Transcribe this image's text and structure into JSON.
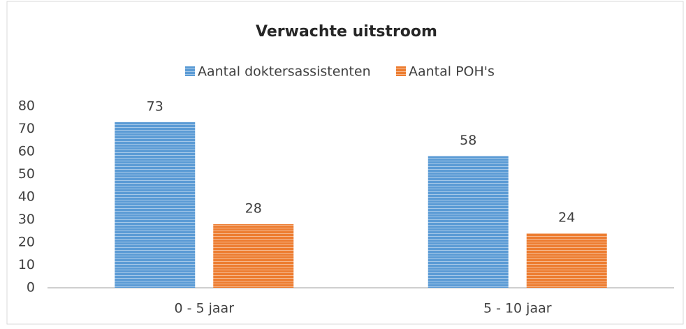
{
  "chart_data": {
    "type": "bar",
    "title": "Verwachte uitstroom",
    "categories": [
      "0 - 5 jaar",
      "5 - 10 jaar"
    ],
    "series": [
      {
        "name": "Aantal doktersassistenten",
        "color": "#5b9bd5",
        "values": [
          73,
          58
        ]
      },
      {
        "name": "Aantal POH's",
        "color": "#ed7d31",
        "values": [
          28,
          24
        ]
      }
    ],
    "ylim": [
      0,
      80
    ],
    "yticks": [
      0,
      10,
      20,
      30,
      40,
      50,
      60,
      70,
      80
    ],
    "grid": false,
    "legend": "top"
  }
}
